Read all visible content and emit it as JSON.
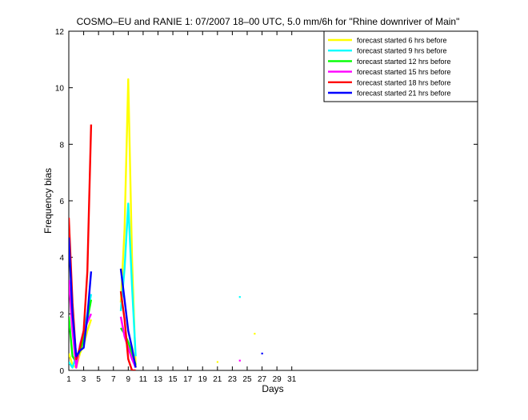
{
  "chart_data": {
    "type": "line",
    "title": "COSMO–EU and RANIE 1: 07/2007 18–00 UTC, 5.0 mm/6h for \"Rhine downriver of Main\"",
    "xlabel": "Days",
    "ylabel": "Frequency bias",
    "xlim": [
      1,
      56
    ],
    "ylim": [
      0,
      12
    ],
    "x_ticks": [
      1,
      3,
      5,
      7,
      9,
      11,
      13,
      15,
      17,
      19,
      21,
      23,
      25,
      27,
      29,
      31
    ],
    "y_ticks": [
      0,
      2,
      4,
      6,
      8,
      10,
      12
    ],
    "grid": false,
    "legend_position": "top-right",
    "series": [
      {
        "name": "forecast started 6 hrs before",
        "color": "#ffff00",
        "segments": [
          [
            [
              1,
              0.6
            ],
            [
              1.5,
              0.2
            ],
            [
              2,
              0.1
            ],
            [
              2.5,
              0.6
            ],
            [
              3,
              0.9
            ],
            [
              3.5,
              1.4
            ],
            [
              4,
              1.8
            ]
          ],
          [
            [
              8,
              2.4
            ],
            [
              8.5,
              5.0
            ],
            [
              9,
              10.3
            ],
            [
              9.5,
              4.0
            ],
            [
              10,
              0.1
            ]
          ]
        ],
        "points": [
          [
            21,
            0.3
          ],
          [
            26,
            1.3
          ]
        ]
      },
      {
        "name": "forecast started 9 hrs before",
        "color": "#00ffff",
        "segments": [
          [
            [
              1,
              0.3
            ],
            [
              1.5,
              0.1
            ],
            [
              2,
              0.5
            ],
            [
              2.5,
              0.7
            ],
            [
              3,
              1.4
            ],
            [
              3.5,
              2.0
            ],
            [
              4,
              2.7
            ]
          ],
          [
            [
              8,
              2.1
            ],
            [
              8.5,
              3.6
            ],
            [
              9,
              5.9
            ],
            [
              9.5,
              3.0
            ],
            [
              10,
              0.5
            ]
          ]
        ],
        "points": [
          [
            24,
            2.6
          ]
        ]
      },
      {
        "name": "forecast started 12 hrs before",
        "color": "#00ff00",
        "segments": [
          [
            [
              1,
              1.9
            ],
            [
              1.5,
              0.5
            ],
            [
              2,
              0.3
            ],
            [
              2.5,
              0.7
            ],
            [
              3,
              1.1
            ],
            [
              3.5,
              1.8
            ],
            [
              4,
              2.5
            ]
          ],
          [
            [
              8,
              1.5
            ],
            [
              8.5,
              1.3
            ],
            [
              9,
              1.0
            ],
            [
              9.5,
              0.6
            ],
            [
              10,
              0.2
            ]
          ]
        ],
        "points": []
      },
      {
        "name": "forecast started 15 hrs before",
        "color": "#ff00ff",
        "segments": [
          [
            [
              1,
              3.2
            ],
            [
              1.5,
              1.4
            ],
            [
              2,
              0.1
            ],
            [
              2.5,
              0.9
            ],
            [
              3,
              1.4
            ],
            [
              3.5,
              1.7
            ],
            [
              4,
              2.0
            ]
          ],
          [
            [
              8,
              1.9
            ],
            [
              8.5,
              1.2
            ],
            [
              9,
              0.8
            ],
            [
              9.5,
              0.4
            ],
            [
              10,
              0.1
            ]
          ]
        ],
        "points": [
          [
            24,
            0.35
          ]
        ]
      },
      {
        "name": "forecast started 18 hrs before",
        "color": "#ff0000",
        "segments": [
          [
            [
              1,
              5.4
            ],
            [
              1.5,
              2.4
            ],
            [
              2,
              0.4
            ],
            [
              2.5,
              0.8
            ],
            [
              3,
              1.4
            ],
            [
              3.5,
              3.5
            ],
            [
              4,
              8.7
            ]
          ],
          [
            [
              8,
              2.8
            ],
            [
              8.5,
              1.8
            ],
            [
              9,
              0.4
            ],
            [
              9.5,
              0.0
            ],
            [
              10,
              0.0
            ]
          ]
        ],
        "points": []
      },
      {
        "name": "forecast started 21 hrs before",
        "color": "#0000ff",
        "segments": [
          [
            [
              1,
              4.7
            ],
            [
              1.5,
              2.0
            ],
            [
              2,
              0.5
            ],
            [
              2.5,
              0.7
            ],
            [
              3,
              0.8
            ],
            [
              3.5,
              1.9
            ],
            [
              4,
              3.5
            ]
          ],
          [
            [
              8,
              3.6
            ],
            [
              8.5,
              2.5
            ],
            [
              9,
              1.4
            ],
            [
              9.5,
              0.8
            ],
            [
              10,
              0.1
            ]
          ]
        ],
        "points": [
          [
            27,
            0.6
          ]
        ]
      }
    ]
  }
}
